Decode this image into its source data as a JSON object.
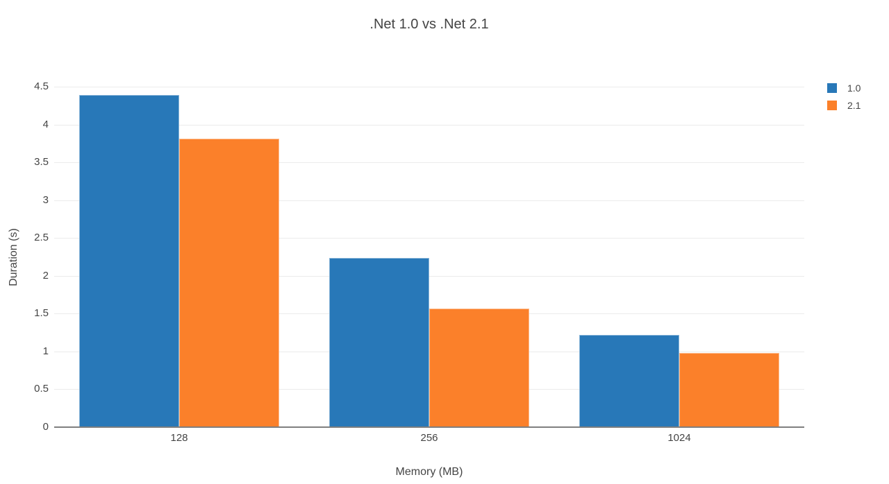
{
  "title": ".Net 1.0 vs .Net 2.1",
  "axes": {
    "x_title": "Memory (MB)",
    "y_title": "Duration (s)",
    "y_ticks": [
      "0",
      "0.5",
      "1",
      "1.5",
      "2",
      "2.5",
      "3",
      "3.5",
      "4",
      "4.5"
    ],
    "x_ticks": [
      "128",
      "256",
      "1024"
    ]
  },
  "legend": {
    "items": [
      {
        "label": "1.0",
        "color": "#2878b8"
      },
      {
        "label": "2.1",
        "color": "#fb802a"
      }
    ]
  },
  "colors": {
    "series_1_blue": "#2878b8",
    "series_2_orange": "#fb802a",
    "gridline": "#ebebeb",
    "axis_line": "#7f7f7f",
    "text": "#444444",
    "background": "#ffffff"
  },
  "chart_data": {
    "type": "bar",
    "title": ".Net 1.0 vs .Net 2.1",
    "xlabel": "Memory (MB)",
    "ylabel": "Duration (s)",
    "categories": [
      "128",
      "256",
      "1024"
    ],
    "series": [
      {
        "name": "1.0",
        "color": "#2878b8",
        "values": [
          4.39,
          2.24,
          1.22
        ]
      },
      {
        "name": "2.1",
        "color": "#fb802a",
        "values": [
          3.81,
          1.57,
          0.98
        ]
      }
    ],
    "ylim": [
      0,
      4.5
    ],
    "ytick_step": 0.5,
    "grid": true,
    "legend_position": "top-right"
  }
}
